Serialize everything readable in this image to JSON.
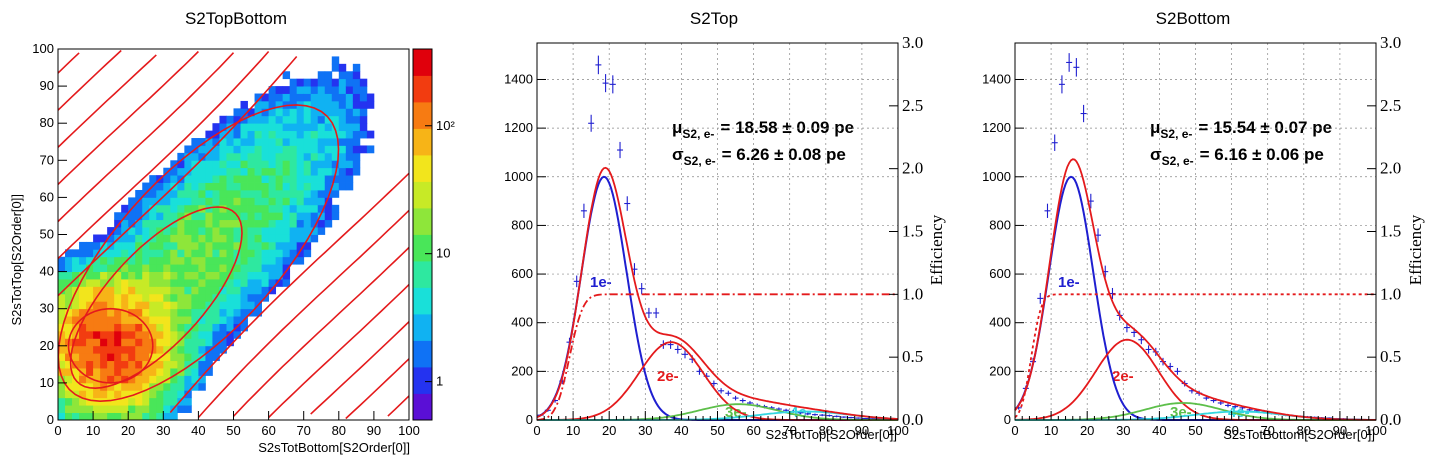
{
  "chart_data": [
    {
      "type": "heatmap",
      "title": "S2TopBottom",
      "xlabel": "S2sTotBottom[S2Order[0]]",
      "ylabel": "S2sTotTop[S2Order[0]]",
      "xlim": [
        0,
        100
      ],
      "ylim": [
        0,
        100
      ],
      "xticks": [
        "0",
        "10",
        "20",
        "30",
        "40",
        "50",
        "60",
        "70",
        "80",
        "90",
        "100"
      ],
      "yticks": [
        "0",
        "10",
        "20",
        "30",
        "40",
        "50",
        "60",
        "70",
        "80",
        "90",
        "100"
      ],
      "zscale": "log",
      "zticks": [
        "1",
        "10",
        "10²"
      ],
      "grid": false,
      "peak": [
        15,
        20
      ],
      "contour_color": "#e41a1c"
    },
    {
      "type": "scatter",
      "title": "S2Top",
      "xlabel": "S2sTotTop[S2Order[0]]",
      "ylabel_right": "Efficiency",
      "xlim": [
        0,
        100
      ],
      "ylim": [
        0,
        1550
      ],
      "ylim_right": [
        0,
        3.0
      ],
      "xticks": [
        "0",
        "10",
        "20",
        "30",
        "40",
        "50",
        "60",
        "70",
        "80",
        "90",
        "100"
      ],
      "yticks": [
        "0",
        "200",
        "400",
        "600",
        "800",
        "1000",
        "1200",
        "1400"
      ],
      "yticks_right": [
        "0.0",
        "0.5",
        "1.0",
        "1.5",
        "2.0",
        "2.5",
        "3.0"
      ],
      "grid": true,
      "fit_text": {
        "mu_sym": "μ",
        "mu_sub": "S2, e-",
        "mu_val": "= 18.58 ± 0.09 pe",
        "sig_sym": "σ",
        "sig_sub": "S2, e-",
        "sig_val": "= 6.26 ± 0.08 pe"
      },
      "component_labels": {
        "e1": "1e-",
        "e2": "2e-",
        "e3": "3e-",
        "e4": "4e-"
      },
      "data_points": [
        [
          1,
          20
        ],
        [
          3,
          40
        ],
        [
          5,
          80
        ],
        [
          7,
          160
        ],
        [
          9,
          320
        ],
        [
          11,
          570
        ],
        [
          13,
          860
        ],
        [
          15,
          1220
        ],
        [
          17,
          1460
        ],
        [
          19,
          1385
        ],
        [
          21,
          1380
        ],
        [
          23,
          1110
        ],
        [
          25,
          890
        ],
        [
          27,
          620
        ],
        [
          29,
          540
        ],
        [
          31,
          440
        ],
        [
          33,
          440
        ],
        [
          35,
          310
        ],
        [
          37,
          310
        ],
        [
          39,
          290
        ],
        [
          41,
          270
        ],
        [
          43,
          250
        ],
        [
          45,
          200
        ],
        [
          47,
          180
        ],
        [
          49,
          150
        ],
        [
          51,
          120
        ],
        [
          53,
          110
        ],
        [
          55,
          90
        ],
        [
          57,
          80
        ],
        [
          59,
          70
        ],
        [
          61,
          60
        ],
        [
          63,
          55
        ],
        [
          65,
          50
        ],
        [
          67,
          45
        ],
        [
          69,
          40
        ],
        [
          71,
          35
        ],
        [
          73,
          30
        ],
        [
          75,
          25
        ],
        [
          77,
          22
        ],
        [
          79,
          20
        ],
        [
          81,
          18
        ],
        [
          83,
          15
        ],
        [
          85,
          12
        ],
        [
          87,
          10
        ],
        [
          89,
          8
        ],
        [
          91,
          6
        ],
        [
          93,
          5
        ],
        [
          95,
          4
        ],
        [
          97,
          3
        ],
        [
          99,
          2
        ]
      ],
      "series": [
        {
          "name": "1e-",
          "kind": "gauss",
          "amp": 1000,
          "mu": 18.58,
          "sigma": 6.26,
          "color": "#1f1fd0"
        },
        {
          "name": "2e-",
          "kind": "gauss",
          "amp": 320,
          "mu": 37.16,
          "sigma": 8.85,
          "color": "#e41a1c"
        },
        {
          "name": "3e-",
          "kind": "gauss",
          "amp": 65,
          "mu": 55.74,
          "sigma": 10.84,
          "color": "#5dbf4a"
        },
        {
          "name": "4e-",
          "kind": "gauss",
          "amp": 35,
          "mu": 74.32,
          "sigma": 12.52,
          "color": "#33d6e0"
        },
        {
          "name": "total",
          "kind": "sum",
          "color": "#e41a1c"
        },
        {
          "name": "efficiency",
          "kind": "erf",
          "plateau": 1.0,
          "center": 9,
          "width": 3,
          "color": "#e41a1c",
          "dash": "8,3,2,3"
        }
      ]
    },
    {
      "type": "scatter",
      "title": "S2Bottom",
      "xlabel": "S2sTotBottom[S2Order[0]]",
      "ylabel_right": "Efficiency",
      "xlim": [
        0,
        100
      ],
      "ylim": [
        0,
        1550
      ],
      "ylim_right": [
        0,
        3.0
      ],
      "xticks": [
        "0",
        "10",
        "20",
        "30",
        "40",
        "50",
        "60",
        "70",
        "80",
        "90",
        "100"
      ],
      "yticks": [
        "0",
        "200",
        "400",
        "600",
        "800",
        "1000",
        "1200",
        "1400"
      ],
      "yticks_right": [
        "0.0",
        "0.5",
        "1.0",
        "1.5",
        "2.0",
        "2.5",
        "3.0"
      ],
      "grid": true,
      "fit_text": {
        "mu_sym": "μ",
        "mu_sub": "S2, e-",
        "mu_val": "= 15.54 ± 0.07 pe",
        "sig_sym": "σ",
        "sig_sub": "S2, e-",
        "sig_val": "= 6.16 ± 0.06 pe"
      },
      "component_labels": {
        "e1": "1e-",
        "e2": "2e-",
        "e3": "3e-",
        "e4": "4e-"
      },
      "data_points": [
        [
          1,
          50
        ],
        [
          3,
          130
        ],
        [
          5,
          240
        ],
        [
          7,
          500
        ],
        [
          9,
          860
        ],
        [
          11,
          1140
        ],
        [
          13,
          1380
        ],
        [
          15,
          1470
        ],
        [
          17,
          1450
        ],
        [
          19,
          1260
        ],
        [
          21,
          900
        ],
        [
          23,
          760
        ],
        [
          25,
          610
        ],
        [
          27,
          520
        ],
        [
          29,
          430
        ],
        [
          31,
          380
        ],
        [
          33,
          360
        ],
        [
          35,
          330
        ],
        [
          37,
          290
        ],
        [
          39,
          280
        ],
        [
          41,
          240
        ],
        [
          43,
          220
        ],
        [
          45,
          200
        ],
        [
          47,
          150
        ],
        [
          49,
          120
        ],
        [
          51,
          110
        ],
        [
          53,
          90
        ],
        [
          55,
          80
        ],
        [
          57,
          70
        ],
        [
          59,
          60
        ],
        [
          61,
          55
        ],
        [
          63,
          50
        ],
        [
          65,
          42
        ],
        [
          67,
          38
        ],
        [
          69,
          32
        ],
        [
          71,
          28
        ],
        [
          73,
          24
        ],
        [
          75,
          20
        ],
        [
          77,
          18
        ],
        [
          79,
          15
        ],
        [
          81,
          13
        ],
        [
          83,
          11
        ],
        [
          85,
          9
        ],
        [
          87,
          8
        ],
        [
          89,
          6
        ],
        [
          91,
          5
        ],
        [
          93,
          4
        ],
        [
          95,
          3
        ],
        [
          97,
          2
        ],
        [
          99,
          2
        ]
      ],
      "series": [
        {
          "name": "1e-",
          "kind": "gauss",
          "amp": 1000,
          "mu": 15.54,
          "sigma": 6.16,
          "color": "#1f1fd0"
        },
        {
          "name": "2e-",
          "kind": "gauss",
          "amp": 330,
          "mu": 31.08,
          "sigma": 8.71,
          "color": "#e41a1c"
        },
        {
          "name": "3e-",
          "kind": "gauss",
          "amp": 70,
          "mu": 46.62,
          "sigma": 10.67,
          "color": "#5dbf4a"
        },
        {
          "name": "4e-",
          "kind": "gauss",
          "amp": 35,
          "mu": 62.16,
          "sigma": 12.32,
          "color": "#33d6e0"
        },
        {
          "name": "total",
          "kind": "sum",
          "color": "#e41a1c"
        },
        {
          "name": "efficiency",
          "kind": "erf",
          "plateau": 1.0,
          "center": 4.5,
          "width": 2.2,
          "color": "#e41a1c",
          "dash": "3,3"
        }
      ]
    }
  ]
}
